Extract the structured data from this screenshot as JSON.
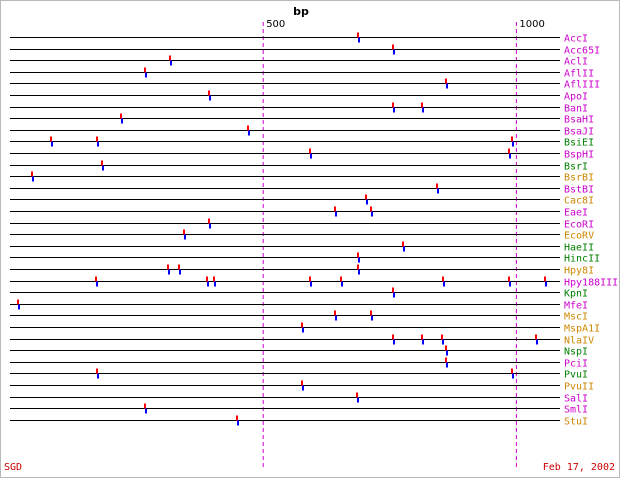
{
  "title": "bp",
  "ticks": [
    500,
    1000
  ],
  "footer": {
    "left": "SGD",
    "right": "Feb 17, 2002"
  },
  "colors": {
    "top_cut": "#ff0000",
    "bottom_cut": "#0000ff",
    "tick_line": "#cc00cc",
    "label_magenta": "#cc00cc",
    "label_green": "#008000",
    "label_orange": "#cc8800"
  },
  "enzymes": [
    {
      "name": "AccI",
      "color": "magenta",
      "sites": [
        687
      ]
    },
    {
      "name": "Acc65I",
      "color": "magenta",
      "sites": [
        756
      ]
    },
    {
      "name": "AclI",
      "color": "magenta",
      "sites": [
        316
      ]
    },
    {
      "name": "AflII",
      "color": "magenta",
      "sites": [
        267
      ]
    },
    {
      "name": "AflIII",
      "color": "magenta",
      "sites": [
        860
      ]
    },
    {
      "name": "ApoI",
      "color": "magenta",
      "sites": [
        393
      ]
    },
    {
      "name": "BanI",
      "color": "magenta",
      "sites": [
        756,
        813
      ]
    },
    {
      "name": "BsaHI",
      "color": "magenta",
      "sites": [
        219
      ]
    },
    {
      "name": "BsaJI",
      "color": "magenta",
      "sites": [
        469
      ]
    },
    {
      "name": "BsiEI",
      "color": "green",
      "sites": [
        80,
        172,
        992
      ]
    },
    {
      "name": "BspHI",
      "color": "magenta",
      "sites": [
        592,
        986
      ]
    },
    {
      "name": "BsrI",
      "color": "green",
      "sites": [
        182
      ]
    },
    {
      "name": "BsrBI",
      "color": "orange",
      "sites": [
        43
      ]
    },
    {
      "name": "BstBI",
      "color": "magenta",
      "sites": [
        844
      ]
    },
    {
      "name": "Cac8I",
      "color": "orange",
      "sites": [
        703
      ]
    },
    {
      "name": "EaeI",
      "color": "magenta",
      "sites": [
        642,
        713
      ]
    },
    {
      "name": "EcoRI",
      "color": "magenta",
      "sites": [
        393
      ]
    },
    {
      "name": "EcoRV",
      "color": "orange",
      "sites": [
        343
      ]
    },
    {
      "name": "HaeII",
      "color": "green",
      "sites": [
        777
      ]
    },
    {
      "name": "HincII",
      "color": "green",
      "sites": [
        687
      ]
    },
    {
      "name": "Hpy8I",
      "color": "orange",
      "sites": [
        312,
        334,
        687
      ]
    },
    {
      "name": "Hpy188III",
      "color": "magenta",
      "sites": [
        170,
        389,
        402,
        592,
        654,
        856,
        985,
        1056
      ]
    },
    {
      "name": "KpnI",
      "color": "green",
      "sites": [
        756
      ]
    },
    {
      "name": "MfeI",
      "color": "magenta",
      "sites": [
        15
      ]
    },
    {
      "name": "MscI",
      "color": "orange",
      "sites": [
        642,
        713
      ]
    },
    {
      "name": "MspA1I",
      "color": "orange",
      "sites": [
        577
      ]
    },
    {
      "name": "NlaIV",
      "color": "orange",
      "sites": [
        756,
        813,
        853,
        1038
      ]
    },
    {
      "name": "NspI",
      "color": "green",
      "sites": [
        860
      ]
    },
    {
      "name": "PciI",
      "color": "magenta",
      "sites": [
        860
      ]
    },
    {
      "name": "PvuI",
      "color": "green",
      "sites": [
        172,
        992
      ]
    },
    {
      "name": "PvuII",
      "color": "orange",
      "sites": [
        577
      ]
    },
    {
      "name": "SalI",
      "color": "magenta",
      "sites": [
        685
      ]
    },
    {
      "name": "SmlI",
      "color": "magenta",
      "sites": [
        267
      ]
    },
    {
      "name": "StuI",
      "color": "orange",
      "sites": [
        448
      ]
    }
  ]
}
